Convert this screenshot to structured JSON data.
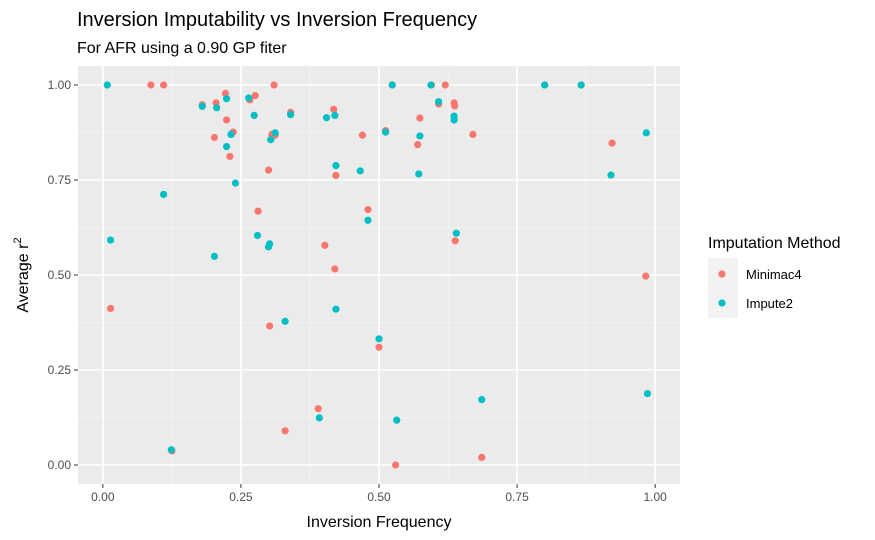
{
  "chart_data": {
    "type": "scatter",
    "title": "Inversion Imputability vs Inversion Frequency",
    "subtitle": "For AFR using a 0.90 GP fiter",
    "xlabel": "Inversion Frequency",
    "ylabel_main": "Average r",
    "ylabel_superscript": "2",
    "xlim": [
      -0.045,
      1.045
    ],
    "ylim": [
      -0.05,
      1.05
    ],
    "x_ticks": [
      0,
      0.25,
      0.5,
      0.75,
      1.0
    ],
    "x_tick_labels": [
      "0.00",
      "0.25",
      "0.50",
      "0.75",
      "1.00"
    ],
    "y_ticks": [
      0,
      0.25,
      0.5,
      0.75,
      1.0
    ],
    "y_tick_labels": [
      "0.00",
      "0.25",
      "0.50",
      "0.75",
      "1.00"
    ],
    "grid": true,
    "legend": {
      "title": "Imputation Method",
      "placement": "right"
    },
    "series": [
      {
        "name": "Minimac4",
        "color": "#F8766D",
        "points": [
          [
            0.087,
            1.0
          ],
          [
            0.11,
            1.0
          ],
          [
            0.18,
            0.948
          ],
          [
            0.205,
            0.953
          ],
          [
            0.222,
            0.978
          ],
          [
            0.202,
            0.862
          ],
          [
            0.224,
            0.908
          ],
          [
            0.23,
            0.812
          ],
          [
            0.236,
            0.876
          ],
          [
            0.266,
            0.961
          ],
          [
            0.276,
            0.972
          ],
          [
            0.306,
            0.87
          ],
          [
            0.312,
            0.868
          ],
          [
            0.31,
            1.0
          ],
          [
            0.34,
            0.928
          ],
          [
            0.281,
            0.668
          ],
          [
            0.3,
            0.776
          ],
          [
            0.302,
            0.366
          ],
          [
            0.33,
            0.09
          ],
          [
            0.39,
            0.148
          ],
          [
            0.402,
            0.578
          ],
          [
            0.418,
            0.936
          ],
          [
            0.422,
            0.762
          ],
          [
            0.42,
            0.516
          ],
          [
            0.47,
            0.868
          ],
          [
            0.48,
            0.672
          ],
          [
            0.5,
            0.31
          ],
          [
            0.512,
            0.88
          ],
          [
            0.524,
            1.0
          ],
          [
            0.53,
            0.0
          ],
          [
            0.57,
            0.843
          ],
          [
            0.574,
            0.913
          ],
          [
            0.595,
            1.0
          ],
          [
            0.608,
            0.95
          ],
          [
            0.62,
            1.0
          ],
          [
            0.636,
            0.953
          ],
          [
            0.637,
            0.945
          ],
          [
            0.638,
            0.59
          ],
          [
            0.67,
            0.87
          ],
          [
            0.686,
            0.02
          ],
          [
            0.8,
            1.0
          ],
          [
            0.866,
            1.0
          ],
          [
            0.922,
            0.847
          ],
          [
            0.983,
            0.497
          ],
          [
            0.014,
            0.412
          ],
          [
            0.125,
            0.037
          ]
        ]
      },
      {
        "name": "Impute2",
        "color": "#00BFC4",
        "points": [
          [
            0.008,
            1.0
          ],
          [
            0.014,
            0.592
          ],
          [
            0.11,
            0.712
          ],
          [
            0.124,
            0.04
          ],
          [
            0.18,
            0.944
          ],
          [
            0.206,
            0.94
          ],
          [
            0.202,
            0.549
          ],
          [
            0.224,
            0.964
          ],
          [
            0.224,
            0.838
          ],
          [
            0.232,
            0.87
          ],
          [
            0.24,
            0.742
          ],
          [
            0.264,
            0.966
          ],
          [
            0.274,
            0.92
          ],
          [
            0.28,
            0.604
          ],
          [
            0.3,
            0.574
          ],
          [
            0.302,
            0.582
          ],
          [
            0.304,
            0.856
          ],
          [
            0.312,
            0.874
          ],
          [
            0.33,
            0.378
          ],
          [
            0.34,
            0.922
          ],
          [
            0.392,
            0.124
          ],
          [
            0.405,
            0.914
          ],
          [
            0.42,
            0.92
          ],
          [
            0.422,
            0.788
          ],
          [
            0.422,
            0.41
          ],
          [
            0.466,
            0.774
          ],
          [
            0.48,
            0.644
          ],
          [
            0.5,
            0.332
          ],
          [
            0.512,
            0.876
          ],
          [
            0.524,
            1.0
          ],
          [
            0.532,
            0.118
          ],
          [
            0.572,
            0.766
          ],
          [
            0.574,
            0.866
          ],
          [
            0.594,
            1.0
          ],
          [
            0.608,
            0.956
          ],
          [
            0.636,
            0.918
          ],
          [
            0.636,
            0.908
          ],
          [
            0.64,
            0.61
          ],
          [
            0.686,
            0.172
          ],
          [
            0.8,
            1.0
          ],
          [
            0.866,
            1.0
          ],
          [
            0.92,
            0.763
          ],
          [
            0.984,
            0.874
          ],
          [
            0.986,
            0.188
          ]
        ]
      }
    ]
  }
}
